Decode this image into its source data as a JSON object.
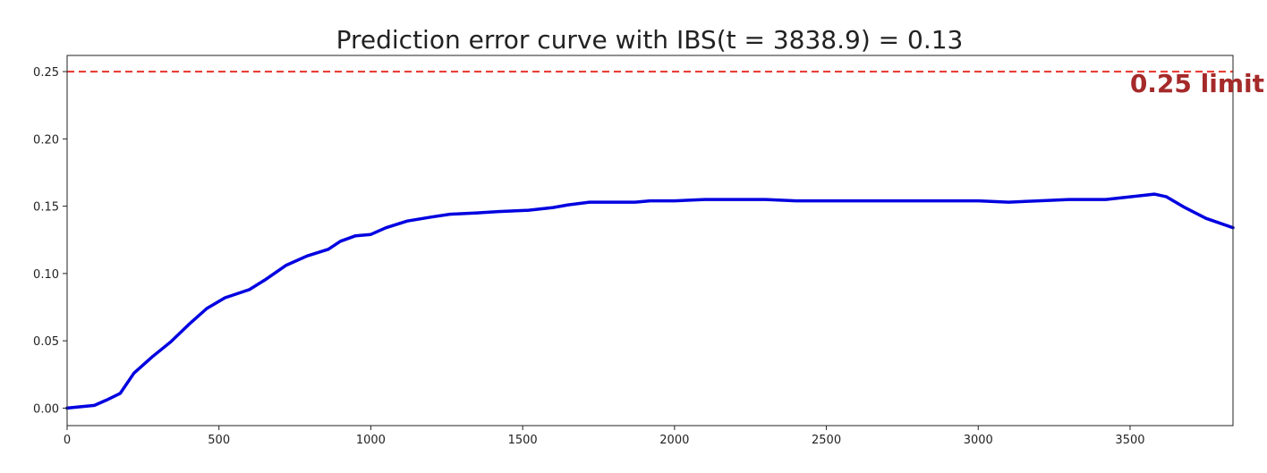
{
  "chart_data": {
    "type": "line",
    "title": "Prediction error curve with IBS(t = 3838.9) = 0.13",
    "xlabel": "",
    "ylabel": "",
    "xlim": [
      0,
      3838.9
    ],
    "ylim": [
      -0.013,
      0.262
    ],
    "xticks": [
      0,
      500,
      1000,
      1500,
      2000,
      2500,
      3000,
      3500
    ],
    "xtick_labels": [
      "0",
      "500",
      "1000",
      "1500",
      "2000",
      "2500",
      "3000",
      "3500"
    ],
    "yticks": [
      0.0,
      0.05,
      0.1,
      0.15,
      0.2,
      0.25
    ],
    "ytick_labels": [
      "0.00",
      "0.05",
      "0.10",
      "0.15",
      "0.20",
      "0.25"
    ],
    "grid": false,
    "series": [
      {
        "color": "#0000e0",
        "x": [
          0,
          90,
          130,
          175,
          220,
          280,
          340,
          400,
          460,
          520,
          600,
          650,
          720,
          790,
          860,
          900,
          950,
          1000,
          1050,
          1120,
          1200,
          1260,
          1350,
          1420,
          1520,
          1600,
          1650,
          1720,
          1800,
          1870,
          1920,
          2000,
          2100,
          2200,
          2300,
          2400,
          2500,
          2600,
          2700,
          2800,
          2900,
          3000,
          3100,
          3200,
          3300,
          3420,
          3500,
          3580,
          3620,
          3680,
          3750,
          3838.9
        ],
        "y": [
          0.0,
          0.002,
          0.006,
          0.011,
          0.026,
          0.038,
          0.049,
          0.062,
          0.074,
          0.082,
          0.088,
          0.095,
          0.106,
          0.113,
          0.118,
          0.124,
          0.128,
          0.129,
          0.134,
          0.139,
          0.142,
          0.144,
          0.145,
          0.146,
          0.147,
          0.149,
          0.151,
          0.153,
          0.153,
          0.153,
          0.154,
          0.154,
          0.155,
          0.155,
          0.155,
          0.154,
          0.154,
          0.154,
          0.154,
          0.154,
          0.154,
          0.154,
          0.153,
          0.154,
          0.155,
          0.155,
          0.157,
          0.159,
          0.157,
          0.149,
          0.141,
          0.134
        ]
      }
    ],
    "reference_line": {
      "y": 0.25,
      "color": "#e8322a",
      "style": "dashed",
      "label": "0.25 limit"
    }
  }
}
